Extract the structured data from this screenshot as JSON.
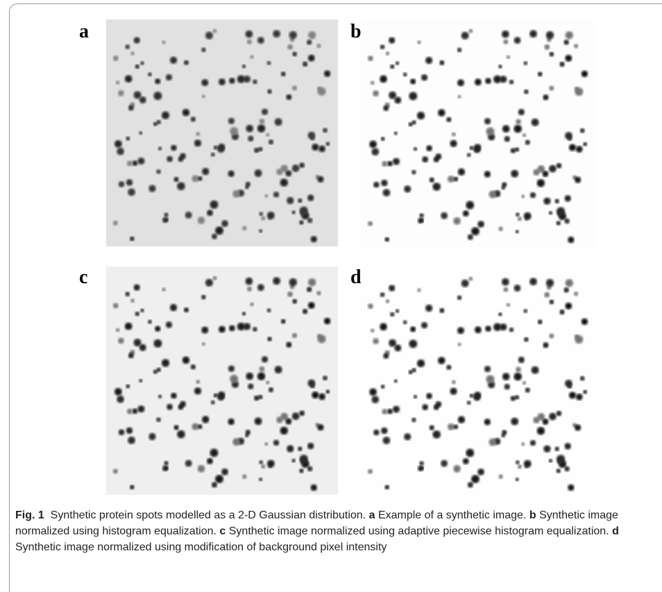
{
  "figure": {
    "panels": [
      {
        "label": "a"
      },
      {
        "label": "b"
      },
      {
        "label": "c"
      },
      {
        "label": "d"
      }
    ],
    "caption": {
      "label": "Fig. 1",
      "text": "Synthetic protein spots modelled as a 2-D Gaussian distribution.",
      "items": [
        {
          "letter": "a",
          "text": "Example of a synthetic image."
        },
        {
          "letter": "b",
          "text": "Synthetic image normalized using histogram equalization."
        },
        {
          "letter": "c",
          "text": "Synthetic image normalized using adaptive piecewise histogram equalization."
        },
        {
          "letter": "d",
          "text": "Synthetic image normalized using modification of background pixel intensity"
        }
      ]
    }
  }
}
